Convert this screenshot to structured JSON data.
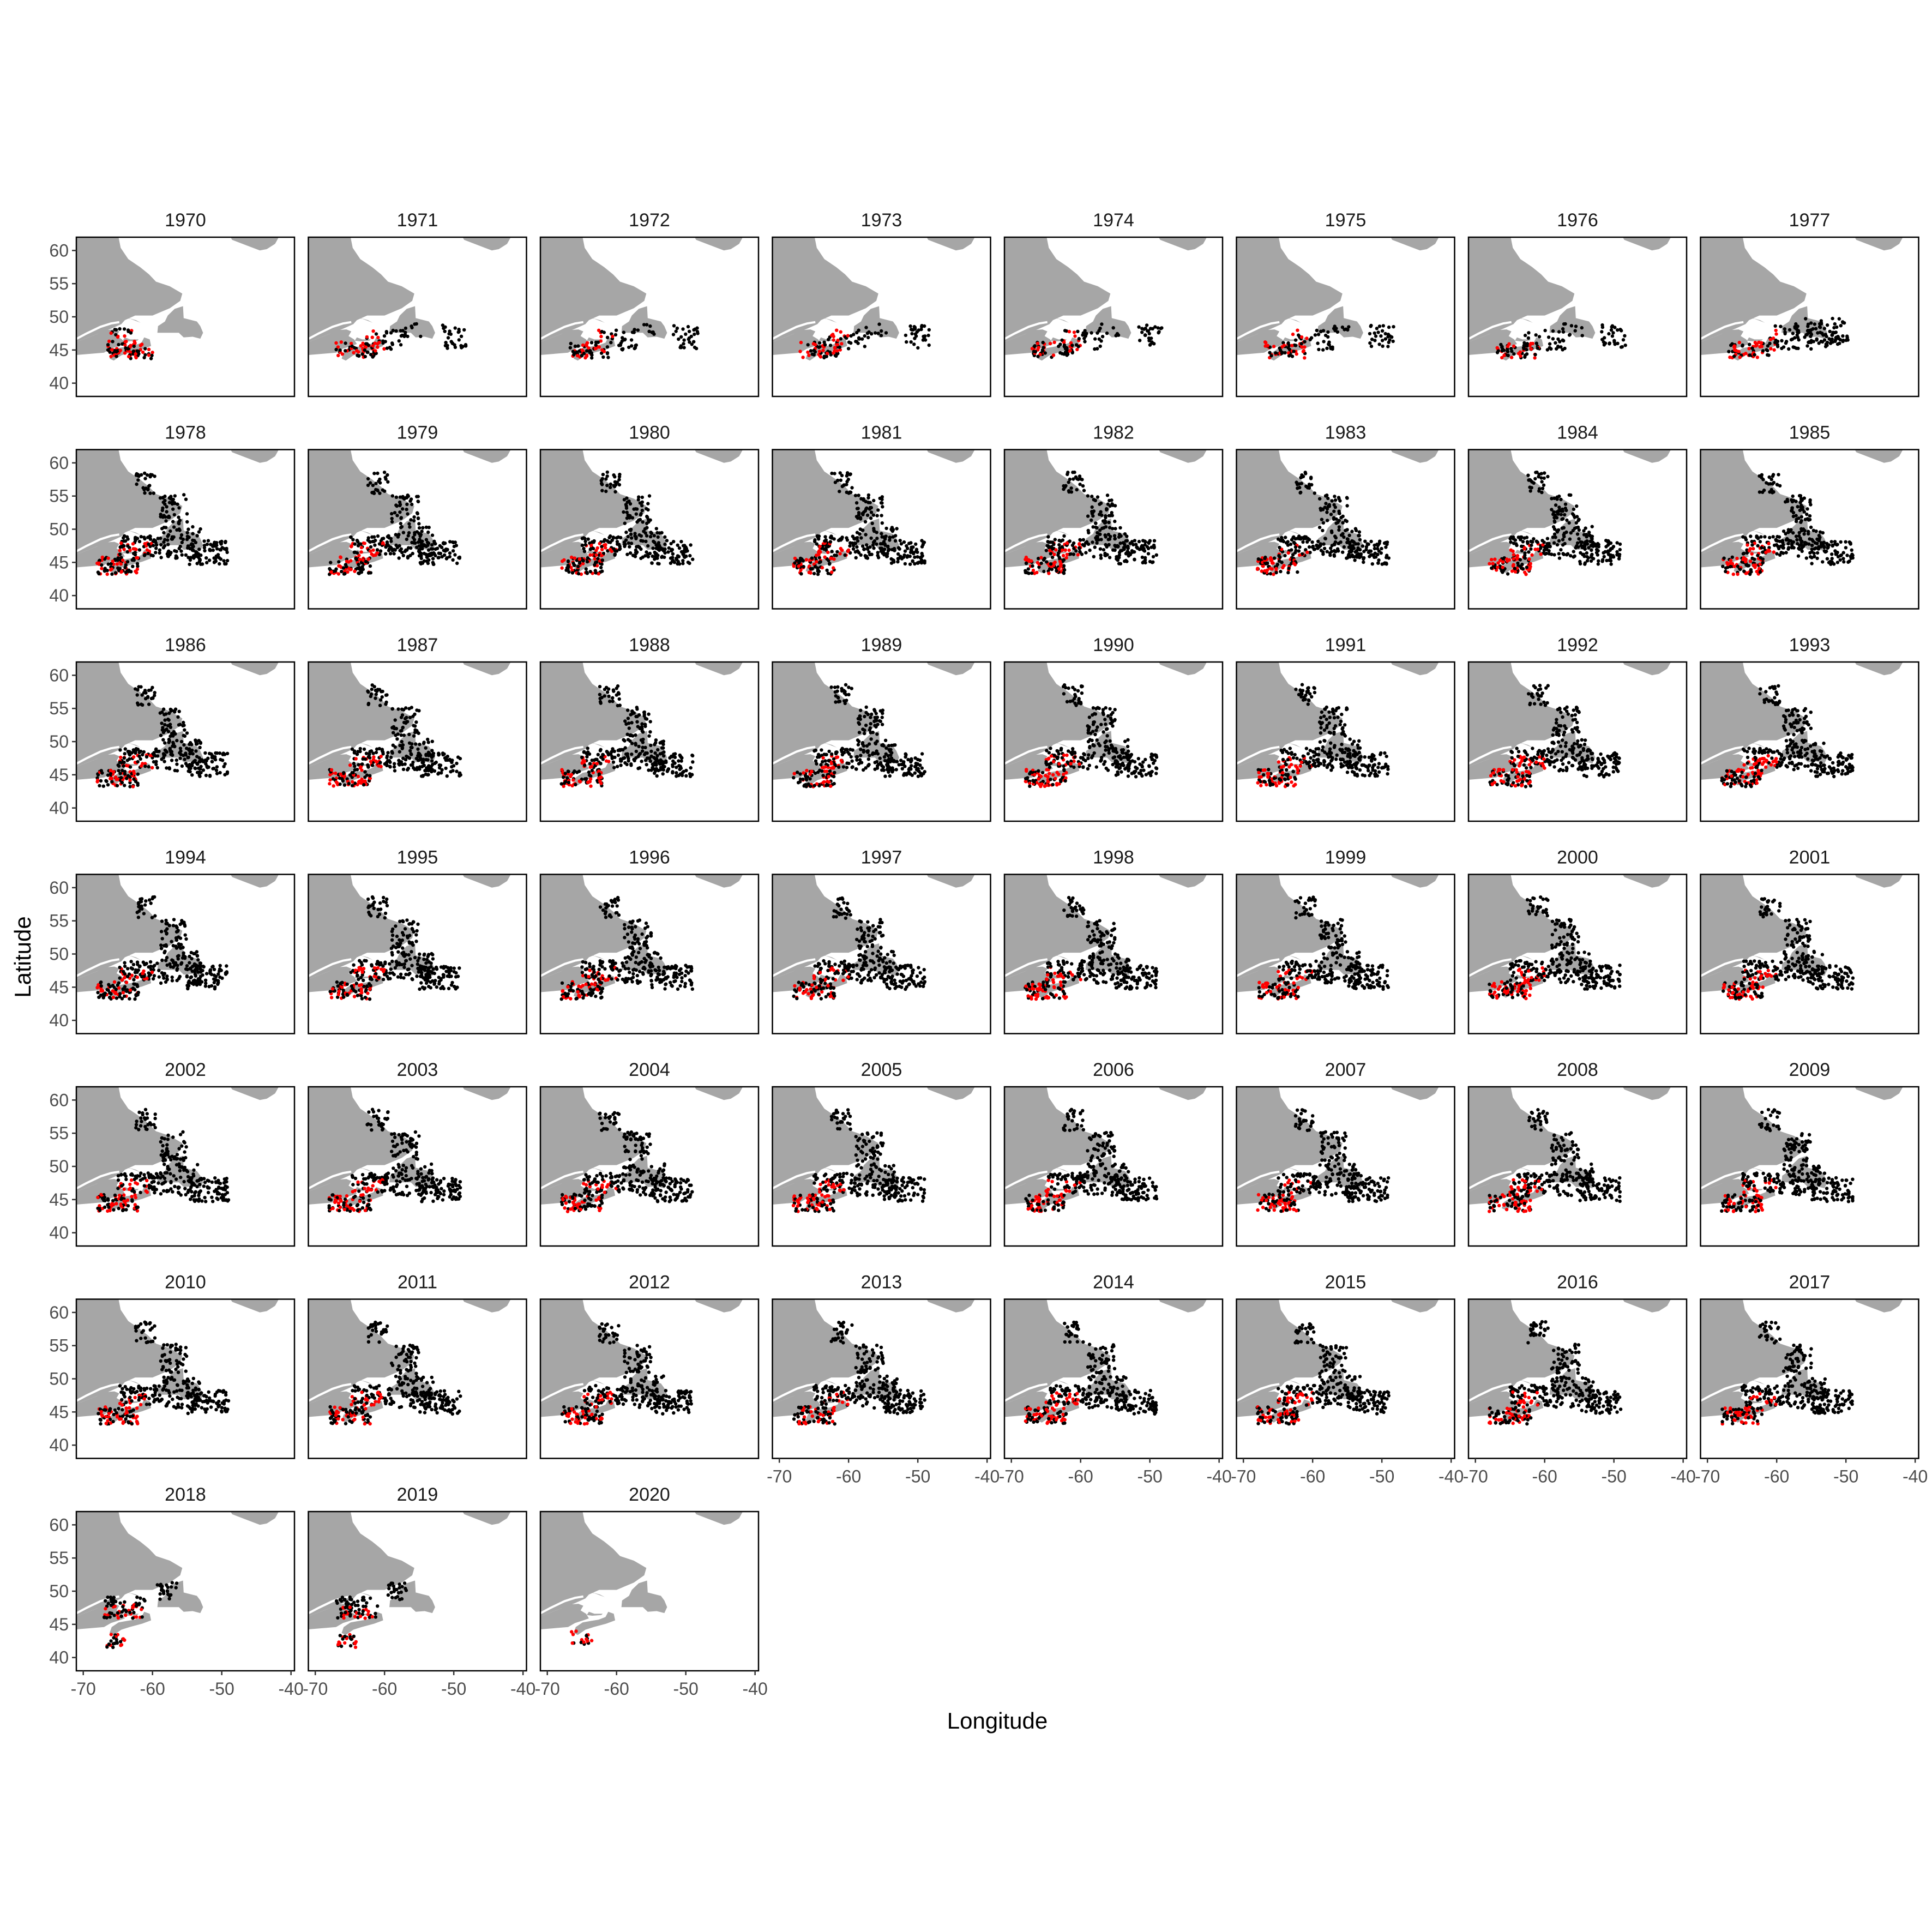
{
  "chart_data": {
    "type": "scatter",
    "layout": "faceted small multiples, 8 columns, 7 rows (one map panel per year)",
    "xlabel": "Longitude",
    "ylabel": "Latitude",
    "xlim": [
      -71,
      -39.5
    ],
    "ylim": [
      38,
      62
    ],
    "x_ticks": [
      -70,
      -60,
      -50,
      -40
    ],
    "y_ticks": [
      40,
      45,
      50,
      55,
      60
    ],
    "x_tick_labels": [
      "-70",
      "-60",
      "-50",
      "-40"
    ],
    "y_tick_labels": [
      "40",
      "45",
      "50",
      "55",
      "60"
    ],
    "grid": false,
    "legend": "none",
    "colors": {
      "land": "#a6a6a6",
      "points_black": "#000000",
      "points_red": "#ff0000",
      "frame": "#000000"
    },
    "basemap": "Atlantic Canada coastline (Quebec, Labrador, Newfoundland, Maritimes) drawn as grey land",
    "panels": [
      {
        "year": "1970",
        "extent": "small"
      },
      {
        "year": "1971",
        "extent": "small-east"
      },
      {
        "year": "1972",
        "extent": "small-east"
      },
      {
        "year": "1973",
        "extent": "small-east"
      },
      {
        "year": "1974",
        "extent": "small-east"
      },
      {
        "year": "1975",
        "extent": "small-east"
      },
      {
        "year": "1976",
        "extent": "small-east"
      },
      {
        "year": "1977",
        "extent": "medium"
      },
      {
        "year": "1978",
        "extent": "large"
      },
      {
        "year": "1979",
        "extent": "large"
      },
      {
        "year": "1980",
        "extent": "large"
      },
      {
        "year": "1981",
        "extent": "large"
      },
      {
        "year": "1982",
        "extent": "large"
      },
      {
        "year": "1983",
        "extent": "large"
      },
      {
        "year": "1984",
        "extent": "large"
      },
      {
        "year": "1985",
        "extent": "large"
      },
      {
        "year": "1986",
        "extent": "large"
      },
      {
        "year": "1987",
        "extent": "large"
      },
      {
        "year": "1988",
        "extent": "large"
      },
      {
        "year": "1989",
        "extent": "large"
      },
      {
        "year": "1990",
        "extent": "large"
      },
      {
        "year": "1991",
        "extent": "large"
      },
      {
        "year": "1992",
        "extent": "large"
      },
      {
        "year": "1993",
        "extent": "large"
      },
      {
        "year": "1994",
        "extent": "large"
      },
      {
        "year": "1995",
        "extent": "large"
      },
      {
        "year": "1996",
        "extent": "large"
      },
      {
        "year": "1997",
        "extent": "large"
      },
      {
        "year": "1998",
        "extent": "large"
      },
      {
        "year": "1999",
        "extent": "large"
      },
      {
        "year": "2000",
        "extent": "large"
      },
      {
        "year": "2001",
        "extent": "large"
      },
      {
        "year": "2002",
        "extent": "large"
      },
      {
        "year": "2003",
        "extent": "large"
      },
      {
        "year": "2004",
        "extent": "large"
      },
      {
        "year": "2005",
        "extent": "large"
      },
      {
        "year": "2006",
        "extent": "large"
      },
      {
        "year": "2007",
        "extent": "large"
      },
      {
        "year": "2008",
        "extent": "large"
      },
      {
        "year": "2009",
        "extent": "large"
      },
      {
        "year": "2010",
        "extent": "large"
      },
      {
        "year": "2011",
        "extent": "large"
      },
      {
        "year": "2012",
        "extent": "large"
      },
      {
        "year": "2013",
        "extent": "large"
      },
      {
        "year": "2014",
        "extent": "large"
      },
      {
        "year": "2015",
        "extent": "large"
      },
      {
        "year": "2016",
        "extent": "large"
      },
      {
        "year": "2017",
        "extent": "large"
      },
      {
        "year": "2018",
        "extent": "west"
      },
      {
        "year": "2019",
        "extent": "west"
      },
      {
        "year": "2020",
        "extent": "tiny"
      }
    ]
  }
}
